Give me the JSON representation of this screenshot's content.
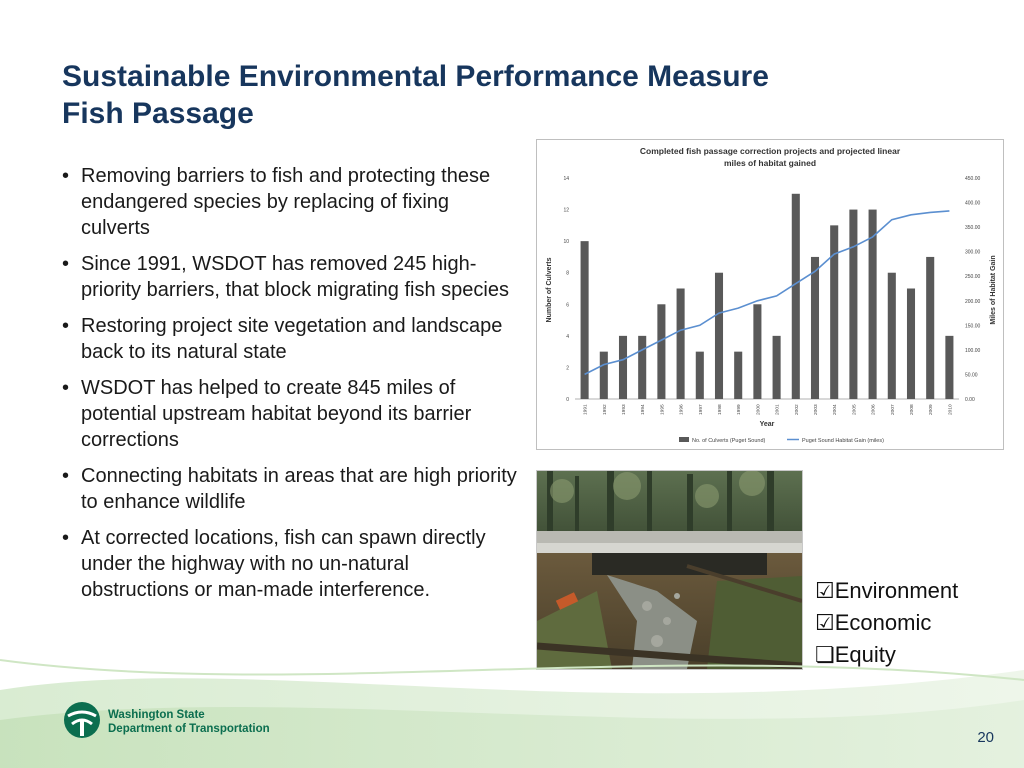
{
  "slide": {
    "title_line1": "Sustainable Environmental Performance Measure",
    "title_line2": "Fish Passage",
    "bullets": [
      "Removing barriers to fish and protecting these endangered species by replacing of fixing culverts",
      "Since 1991, WSDOT has removed 245 high-priority barriers, that block migrating fish species",
      "Restoring project site vegetation and landscape back to its natural state",
      "WSDOT has helped to create 845 miles of potential upstream habitat beyond its barrier corrections",
      "Connecting habitats in areas that are high priority to enhance wildlife",
      "At corrected locations, fish can spawn directly under the highway with no un-natural obstructions or man-made interference."
    ],
    "checklist": [
      {
        "symbol": "☑",
        "label": "Environment"
      },
      {
        "symbol": "☑",
        "label": "Economic"
      },
      {
        "symbol": "❏",
        "label": "Equity"
      }
    ],
    "logo": {
      "line1": "Washington State",
      "line2": "Department of Transportation"
    },
    "page_number": "20"
  },
  "colors": {
    "title": "#17365d",
    "bar": "#595959",
    "line": "#5b8fd0",
    "logo_green": "#0b6e4f"
  },
  "chart_data": {
    "type": "bar",
    "title_line1": "Completed fish passage correction projects and projected linear",
    "title_line2": "miles of habitat gained",
    "xlabel": "Year",
    "ylabel": "Number of Culverts",
    "ylabel_right": "Miles of Habitat Gain",
    "categories": [
      "1991",
      "1992",
      "1993",
      "1994",
      "1995",
      "1996",
      "1997",
      "1998",
      "1999",
      "2000",
      "2001",
      "2002",
      "2003",
      "2004",
      "2005",
      "2006",
      "2007",
      "2008",
      "2009",
      "2010"
    ],
    "series": [
      {
        "name": "No. of Culverts (Puget Sound)",
        "type": "bar",
        "axis": "left",
        "values": [
          10,
          3,
          4,
          4,
          6,
          7,
          3,
          8,
          3,
          6,
          4,
          13,
          9,
          11,
          12,
          12,
          8,
          7,
          9,
          4
        ]
      },
      {
        "name": "Puget Sound Habitat Gain (miles)",
        "type": "line",
        "axis": "right",
        "values": [
          50,
          70,
          80,
          100,
          120,
          140,
          150,
          175,
          185,
          200,
          210,
          235,
          260,
          295,
          310,
          330,
          365,
          375,
          380,
          383
        ]
      }
    ],
    "ylim": [
      0,
      14
    ],
    "yticks": [
      0,
      2,
      4,
      6,
      8,
      10,
      12,
      14
    ],
    "ylim_right": [
      0,
      450
    ],
    "yticks_right": [
      "0.00",
      "50.00",
      "100.00",
      "150.00",
      "200.00",
      "250.00",
      "300.00",
      "350.00",
      "400.00",
      "450.00"
    ],
    "legend": "bottom",
    "grid": false
  }
}
